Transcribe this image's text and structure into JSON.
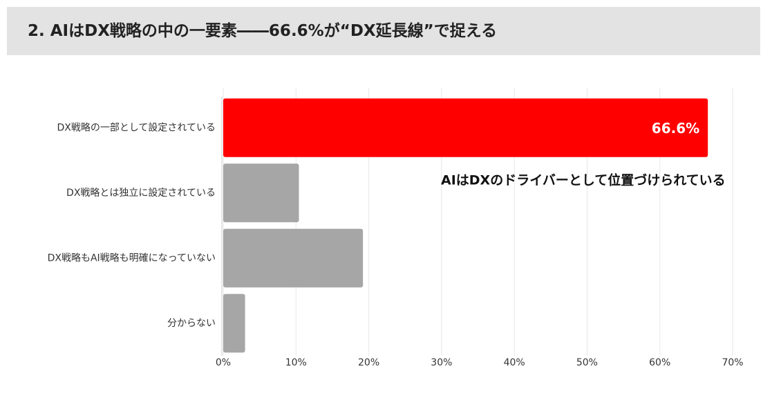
{
  "chart_data": {
    "type": "bar",
    "orientation": "horizontal",
    "title": "2. AIはDX戦略の中の一要素――66.6%が“DX延長線”で捉える",
    "categories": [
      "DX戦略の一部として設定されている",
      "DX戦略とは独立に設定されている",
      "DX戦略もAI戦略も明確になっていない",
      "分からない"
    ],
    "values": [
      66.6,
      10.4,
      19.2,
      3.0
    ],
    "value_labels": [
      "66.6%",
      null,
      null,
      null
    ],
    "colors": [
      "#ff0000",
      "#a6a6a6",
      "#a6a6a6",
      "#a6a6a6"
    ],
    "annotation": "AIはDXのドライバーとして位置づけられている",
    "xlim": [
      0,
      70
    ],
    "xticks": [
      {
        "value": 0,
        "label": "0%"
      },
      {
        "value": 10,
        "label": "10%"
      },
      {
        "value": 20,
        "label": "20%"
      },
      {
        "value": 30,
        "label": "30%"
      },
      {
        "value": 40,
        "label": "40%"
      },
      {
        "value": 50,
        "label": "50%"
      },
      {
        "value": 60,
        "label": "60%"
      },
      {
        "value": 70,
        "label": "70%"
      }
    ],
    "grid": true
  }
}
